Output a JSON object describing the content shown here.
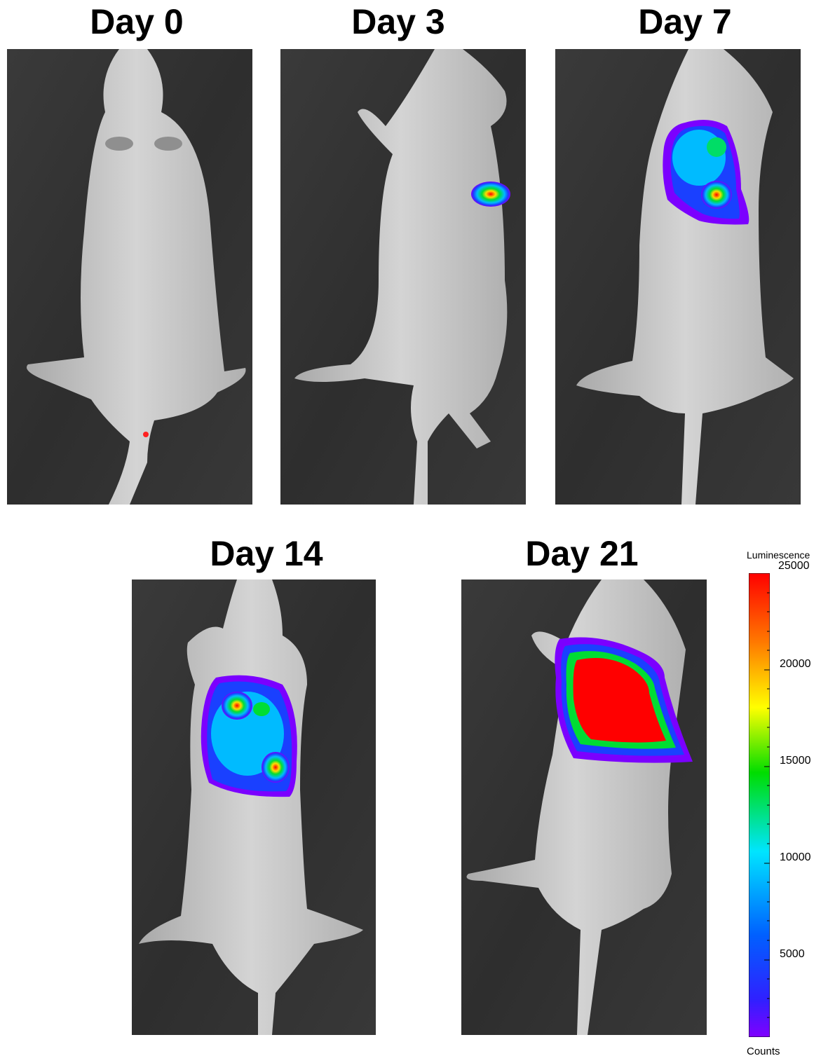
{
  "panels": [
    {
      "label": "Day 0"
    },
    {
      "label": "Day 3"
    },
    {
      "label": "Day 7"
    },
    {
      "label": "Day 14"
    },
    {
      "label": "Day 21"
    }
  ],
  "colorbar": {
    "title": "Luminescence",
    "ticks": [
      "25000",
      "20000",
      "15000",
      "10000",
      "5000"
    ],
    "unit": "Counts",
    "colors": [
      "#ff0000",
      "#ff8c00",
      "#ffff00",
      "#00dd00",
      "#00e5ff",
      "#0050ff",
      "#7b00ff"
    ]
  }
}
